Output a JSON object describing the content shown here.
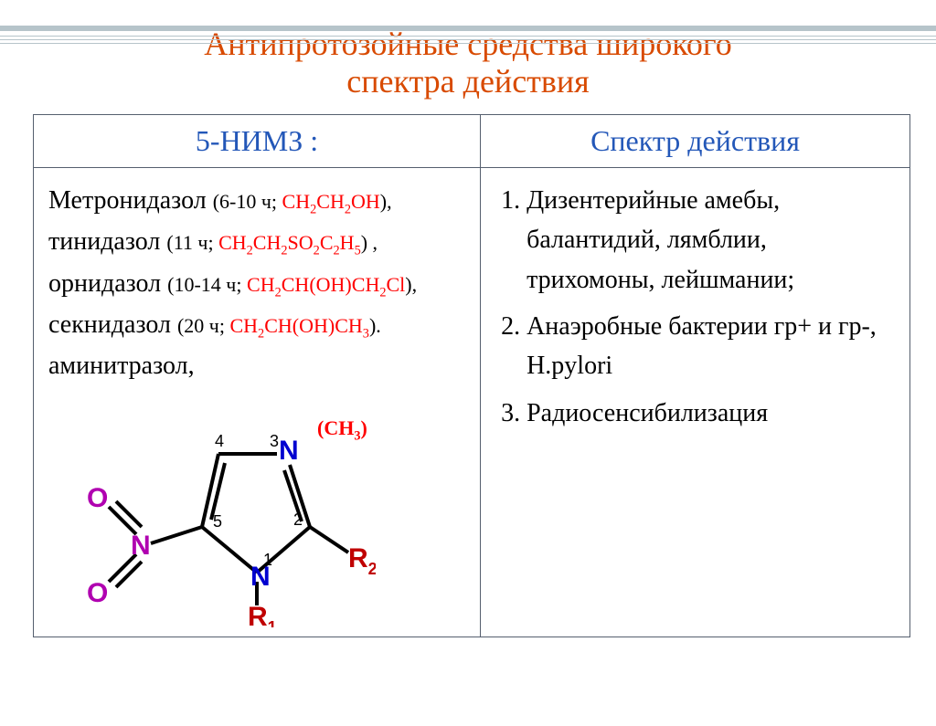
{
  "title_line1": "Антипротозойные средства широкого",
  "title_line2": "спектра действия",
  "title_color": "#d84a00",
  "header_left": "5-НИМЗ :",
  "header_left_color": "#2357b8",
  "header_right": "Спектр действия",
  "header_right_color": "#2357b8",
  "drugs": [
    {
      "name": "Метронидазол ",
      "detail_pre": "(6-10 ч; ",
      "formula": "CH2CH2OH",
      "detail_post": "),",
      "name_size": "28px",
      "detail_size": "22px"
    },
    {
      "name": "тинидазол ",
      "detail_pre": "(11 ч; ",
      "formula": "CH2CH2SO2C2H5",
      "detail_post": ") ,",
      "name_size": "28px",
      "detail_size": "22px"
    },
    {
      "name": "орнидазол ",
      "detail_pre": "(10-14 ч; ",
      "formula": "CH2CH(OH)CH2Cl",
      "detail_post": "),",
      "name_size": "28px",
      "detail_size": "22px"
    },
    {
      "name": "секнидазол ",
      "detail_pre": "(20 ч; ",
      "formula": "CH2CH(OH)CH3",
      "detail_post": ").",
      "name_size": "28px",
      "detail_size": "22px"
    },
    {
      "name": "аминитразол,",
      "detail_pre": "",
      "formula": "",
      "detail_post": "",
      "name_size": "28px",
      "detail_size": "22px"
    }
  ],
  "formula_color": "#ff0000",
  "ch3_label": "(CH3)",
  "ch3_color": "#ff0000",
  "spectrum": [
    "Дизентерийные амебы, балантидий, лямблии, трихомоны, лейшмании;",
    "Анаэробные бактерии гр+ и гр-, H.pylori",
    "Радиосенсибилизация"
  ],
  "structure": {
    "ring_color": "#000000",
    "oxygen_color": "#b000b0",
    "nitrogen_color": "#0000d0",
    "label_color": "#000000",
    "r_color": "#c00000",
    "num_color": "#000000",
    "line_width": 4,
    "atoms": {
      "N1": "N",
      "N3": "N",
      "N_nitro": "N",
      "O1": "O",
      "O2": "O",
      "R1": "R",
      "R1_sub": "1",
      "R2": "R",
      "R2_sub": "2"
    },
    "ring_numbers": {
      "n1": "1",
      "n2": "2",
      "n3": "3",
      "n4": "4",
      "n5": "5"
    }
  },
  "border_color": "#b6c4ca",
  "rule_top_offsets": [
    14,
    19,
    24
  ]
}
